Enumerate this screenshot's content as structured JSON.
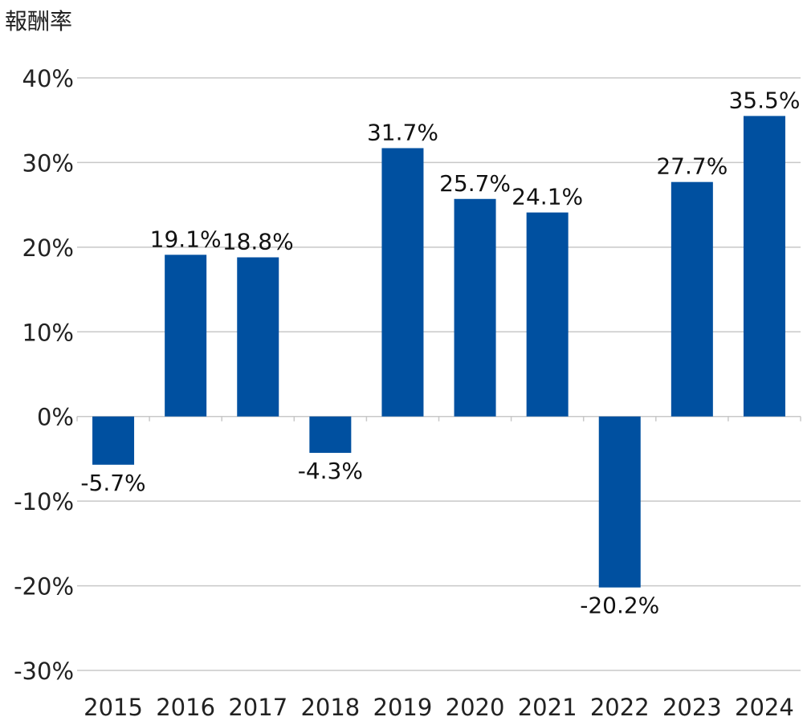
{
  "chart_data": {
    "type": "bar",
    "title": "",
    "ylabel": "報酬率",
    "xlabel": "",
    "categories": [
      "2015",
      "2016",
      "2017",
      "2018",
      "2019",
      "2020",
      "2021",
      "2022",
      "2023",
      "2024"
    ],
    "values": [
      -5.7,
      19.1,
      18.8,
      -4.3,
      31.7,
      25.7,
      24.1,
      -20.2,
      27.7,
      35.5
    ],
    "value_labels": [
      "-5.7%",
      "19.1%",
      "18.8%",
      "-4.3%",
      "31.7%",
      "25.7%",
      "24.1%",
      "-20.2%",
      "27.7%",
      "35.5%"
    ],
    "ylim": [
      -30,
      40
    ],
    "yticks": [
      40,
      30,
      20,
      10,
      0,
      -10,
      -20,
      -30
    ],
    "ytick_labels": [
      "40%",
      "30%",
      "20%",
      "10%",
      "0%",
      "-10%",
      "-20%",
      "-30%"
    ],
    "grid": true,
    "bar_color": "#0050a0"
  }
}
